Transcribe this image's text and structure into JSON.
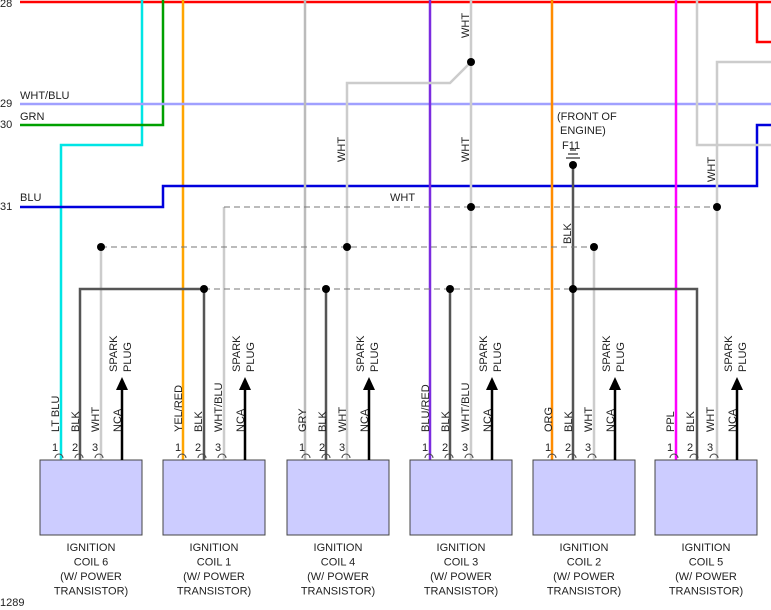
{
  "left_numbers": [
    "28",
    "29",
    "30",
    "31"
  ],
  "footer": "1289",
  "wire_labels": {
    "wht_blu": "WHT/BLU",
    "grn": "GRN",
    "blu": "BLU",
    "wht_top": "WHT",
    "wht_a": "WHT",
    "wht_b": "WHT",
    "wht_c": "WHT",
    "wht_d": "WHT",
    "blk": "BLK"
  },
  "ground": {
    "note_line1": "(FRONT OF",
    "note_line2": "ENGINE)",
    "connector": "F11"
  },
  "coils": [
    {
      "pins": [
        "1",
        "2",
        "3"
      ],
      "wires": [
        "LT BLU",
        "BLK",
        "WHT",
        "NCA"
      ],
      "spark": "SPARK",
      "plug": "PLUG",
      "caption": [
        "IGNITION",
        "COIL 6",
        "(W/ POWER",
        "TRANSISTOR)"
      ]
    },
    {
      "pins": [
        "1",
        "2",
        "3"
      ],
      "wires": [
        "YEL/RED",
        "BLK",
        "WHT/BLU",
        "NCA"
      ],
      "spark": "SPARK",
      "plug": "PLUG",
      "caption": [
        "IGNITION",
        "COIL 1",
        "(W/ POWER",
        "TRANSISTOR)"
      ]
    },
    {
      "pins": [
        "1",
        "2",
        "3"
      ],
      "wires": [
        "GRY",
        "BLK",
        "WHT",
        "NCA"
      ],
      "spark": "SPARK",
      "plug": "PLUG",
      "caption": [
        "IGNITION",
        "COIL 4",
        "(W/ POWER",
        "TRANSISTOR)"
      ]
    },
    {
      "pins": [
        "1",
        "2",
        "3"
      ],
      "wires": [
        "BLU/RED",
        "BLK",
        "WHT/BLU",
        "NCA"
      ],
      "spark": "SPARK",
      "plug": "PLUG",
      "caption": [
        "IGNITION",
        "COIL 3",
        "(W/ POWER",
        "TRANSISTOR)"
      ]
    },
    {
      "pins": [
        "1",
        "2",
        "3"
      ],
      "wires": [
        "ORG",
        "BLK",
        "WHT",
        "NCA"
      ],
      "spark": "SPARK",
      "plug": "PLUG",
      "caption": [
        "IGNITION",
        "COIL 2",
        "(W/ POWER",
        "TRANSISTOR)"
      ]
    },
    {
      "pins": [
        "1",
        "2",
        "3"
      ],
      "wires": [
        "PPL",
        "BLK",
        "WHT",
        "NCA"
      ],
      "spark": "SPARK",
      "plug": "PLUG",
      "caption": [
        "IGNITION",
        "COIL 5",
        "(W/ POWER",
        "TRANSISTOR)"
      ]
    }
  ]
}
